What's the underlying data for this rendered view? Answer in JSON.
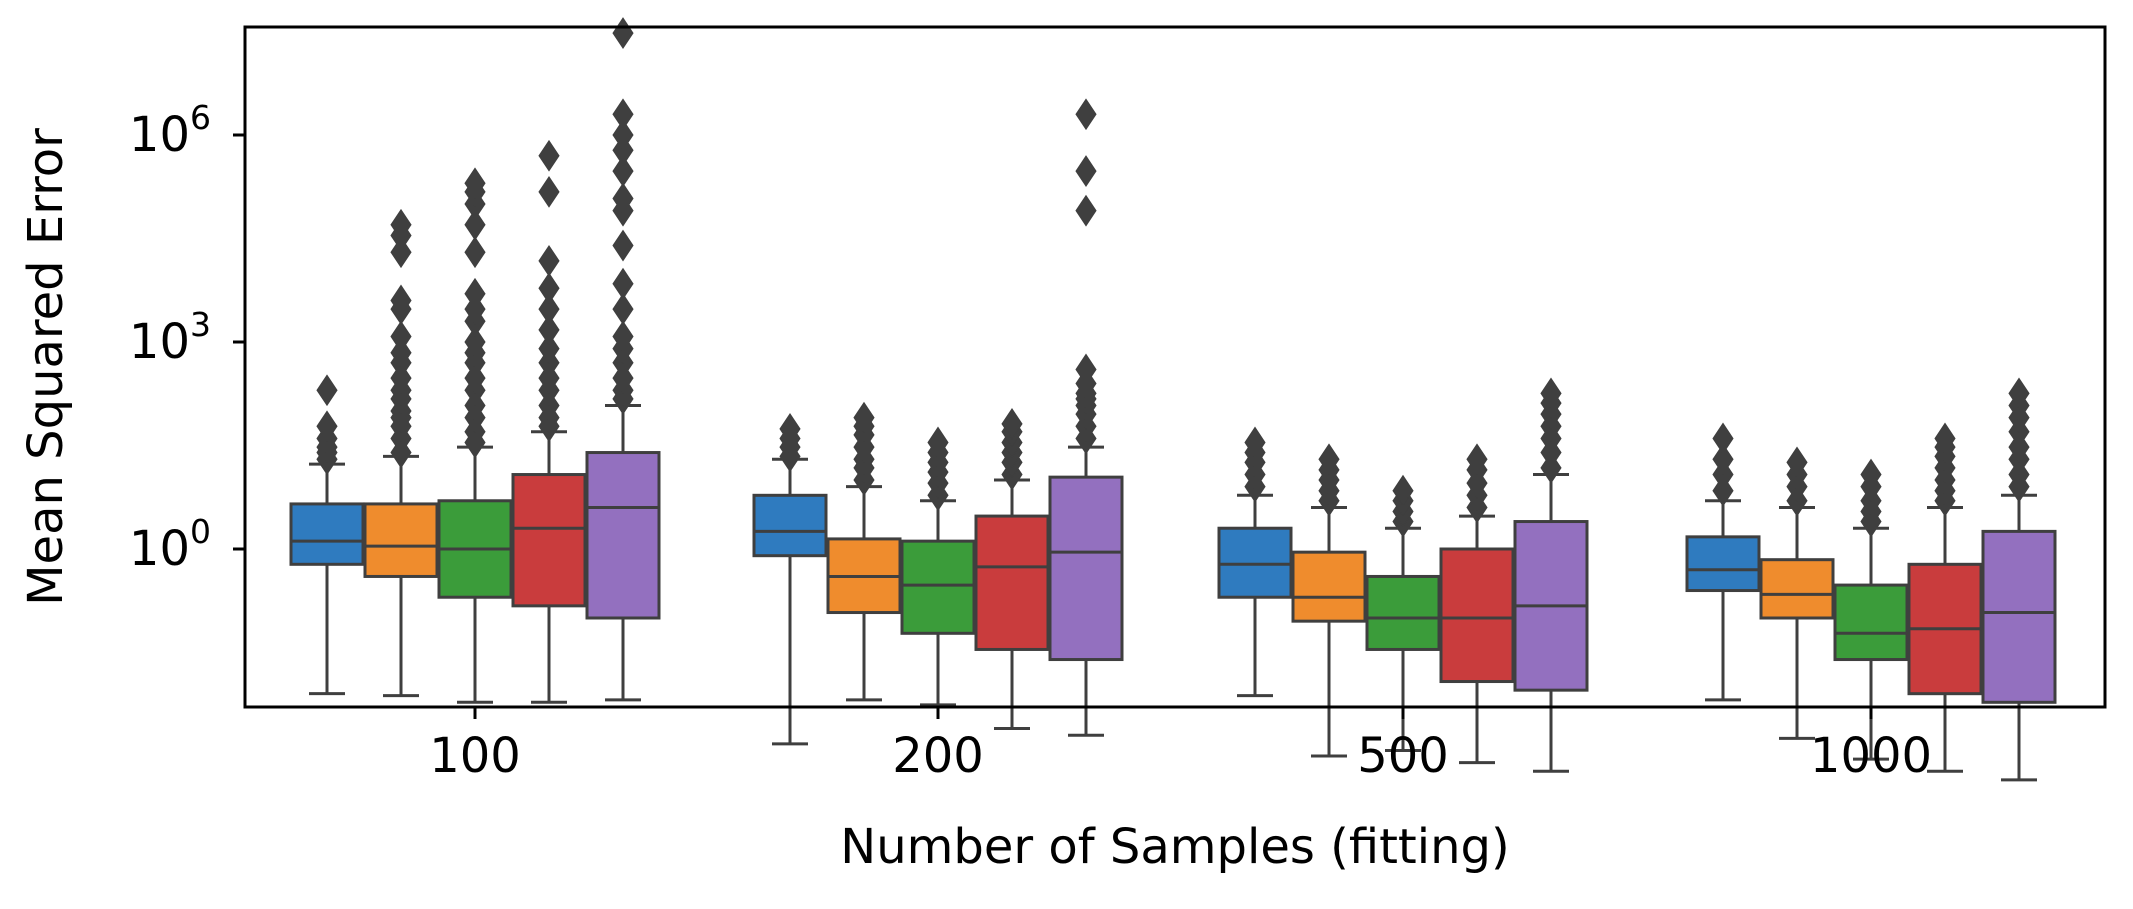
{
  "chart_data": {
    "type": "box",
    "title": "",
    "xlabel": "Number of Samples (fitting)",
    "ylabel": "Mean Squared Error",
    "yscale": "log",
    "ylim": [
      0.0001,
      50000000
    ],
    "yticks": [
      1,
      1000,
      1000000
    ],
    "ytick_labels": [
      {
        "base": "10",
        "exp": "0"
      },
      {
        "base": "10",
        "exp": "3"
      },
      {
        "base": "10",
        "exp": "6"
      }
    ],
    "categories": [
      "100",
      "200",
      "500",
      "1000"
    ],
    "grid": false,
    "legend": "none",
    "box_colors": [
      "#2f7bbf",
      "#ef8c2d",
      "#3b9c3a",
      "#c93c3d",
      "#9370bf"
    ],
    "edge_color": "#3f3f3f",
    "groups": [
      {
        "category": "100",
        "boxes": [
          {
            "whislo": 0.008,
            "q1": 0.6,
            "med": 1.3,
            "q3": 4.5,
            "whishi": 17,
            "fliers": [
              20,
              25,
              30,
              40,
              60,
              200
            ]
          },
          {
            "whislo": 0.0075,
            "q1": 0.4,
            "med": 1.1,
            "q3": 4.5,
            "whishi": 22,
            "fliers": [
              25,
              40,
              60,
              80,
              100,
              150,
              200,
              300,
              500,
              700,
              1200,
              3000,
              4000,
              20000,
              35000,
              50000
            ]
          },
          {
            "whislo": 0.006,
            "q1": 0.2,
            "med": 1.0,
            "q3": 5.0,
            "whishi": 30,
            "fliers": [
              35,
              50,
              80,
              120,
              200,
              300,
              500,
              700,
              1000,
              2000,
              3000,
              5000,
              20000,
              50000,
              100000,
              150000,
              200000
            ]
          },
          {
            "whislo": 0.006,
            "q1": 0.15,
            "med": 2.0,
            "q3": 12.0,
            "whishi": 50,
            "fliers": [
              60,
              80,
              120,
              200,
              300,
              500,
              800,
              1500,
              3000,
              6000,
              15000,
              150000,
              500000
            ]
          },
          {
            "whislo": 0.0065,
            "q1": 0.1,
            "med": 4.0,
            "q3": 25.0,
            "whishi": 120,
            "fliers": [
              150,
              200,
              300,
              500,
              800,
              1200,
              3000,
              7000,
              25000,
              80000,
              120000,
              300000,
              600000,
              1000000,
              2000000,
              30000000
            ]
          }
        ]
      },
      {
        "category": "200",
        "boxes": [
          {
            "whislo": 0.0015,
            "q1": 0.8,
            "med": 1.8,
            "q3": 6.0,
            "whishi": 20,
            "fliers": [
              22,
              30,
              40,
              55
            ]
          },
          {
            "whislo": 0.0065,
            "q1": 0.12,
            "med": 0.4,
            "q3": 1.4,
            "whishi": 8,
            "fliers": [
              10,
              15,
              20,
              30,
              45,
              60,
              80
            ]
          },
          {
            "whislo": 0.0055,
            "q1": 0.06,
            "med": 0.3,
            "q3": 1.3,
            "whishi": 5,
            "fliers": [
              6,
              9,
              13,
              18,
              25,
              35
            ]
          },
          {
            "whislo": 0.0025,
            "q1": 0.035,
            "med": 0.55,
            "q3": 3.0,
            "whishi": 10,
            "fliers": [
              12,
              18,
              25,
              35,
              50,
              65
            ]
          },
          {
            "whislo": 0.002,
            "q1": 0.025,
            "med": 0.9,
            "q3": 11.0,
            "whishi": 30,
            "fliers": [
              40,
              60,
              90,
              120,
              150,
              180,
              250,
              400,
              80000,
              300000,
              2000000
            ]
          }
        ]
      },
      {
        "category": "500",
        "boxes": [
          {
            "whislo": 0.0075,
            "q1": 0.2,
            "med": 0.6,
            "q3": 2.0,
            "whishi": 6,
            "fliers": [
              8,
              12,
              18,
              25,
              35
            ]
          },
          {
            "whislo": 0.001,
            "q1": 0.09,
            "med": 0.2,
            "q3": 0.9,
            "whishi": 4,
            "fliers": [
              5,
              7,
              10,
              14,
              20
            ]
          },
          {
            "whislo": 0.0012,
            "q1": 0.035,
            "med": 0.1,
            "q3": 0.4,
            "whishi": 2,
            "fliers": [
              2.5,
              3.5,
              5,
              7
            ]
          },
          {
            "whislo": 0.0008,
            "q1": 0.012,
            "med": 0.1,
            "q3": 1.0,
            "whishi": 3,
            "fliers": [
              4,
              6,
              9,
              14,
              20
            ]
          },
          {
            "whislo": 0.0006,
            "q1": 0.009,
            "med": 0.15,
            "q3": 2.5,
            "whishi": 12,
            "fliers": [
              15,
              25,
              40,
              60,
              90,
              130,
              180
            ]
          }
        ]
      },
      {
        "category": "1000",
        "boxes": [
          {
            "whislo": 0.0065,
            "q1": 0.25,
            "med": 0.5,
            "q3": 1.5,
            "whishi": 5,
            "fliers": [
              7,
              12,
              20,
              40
            ]
          },
          {
            "whislo": 0.0018,
            "q1": 0.1,
            "med": 0.22,
            "q3": 0.7,
            "whishi": 4,
            "fliers": [
              5,
              8,
              12,
              18
            ]
          },
          {
            "whislo": 0.0009,
            "q1": 0.025,
            "med": 0.06,
            "q3": 0.3,
            "whishi": 2,
            "fliers": [
              2.5,
              3.5,
              5,
              8,
              12
            ]
          },
          {
            "whislo": 0.0006,
            "q1": 0.008,
            "med": 0.07,
            "q3": 0.6,
            "whishi": 4,
            "fliers": [
              5,
              7,
              10,
              15,
              22,
              30,
              40
            ]
          },
          {
            "whislo": 0.00045,
            "q1": 0.006,
            "med": 0.12,
            "q3": 1.8,
            "whishi": 6,
            "fliers": [
              8,
              12,
              20,
              30,
              50,
              80,
              120,
              180
            ]
          }
        ]
      }
    ]
  }
}
